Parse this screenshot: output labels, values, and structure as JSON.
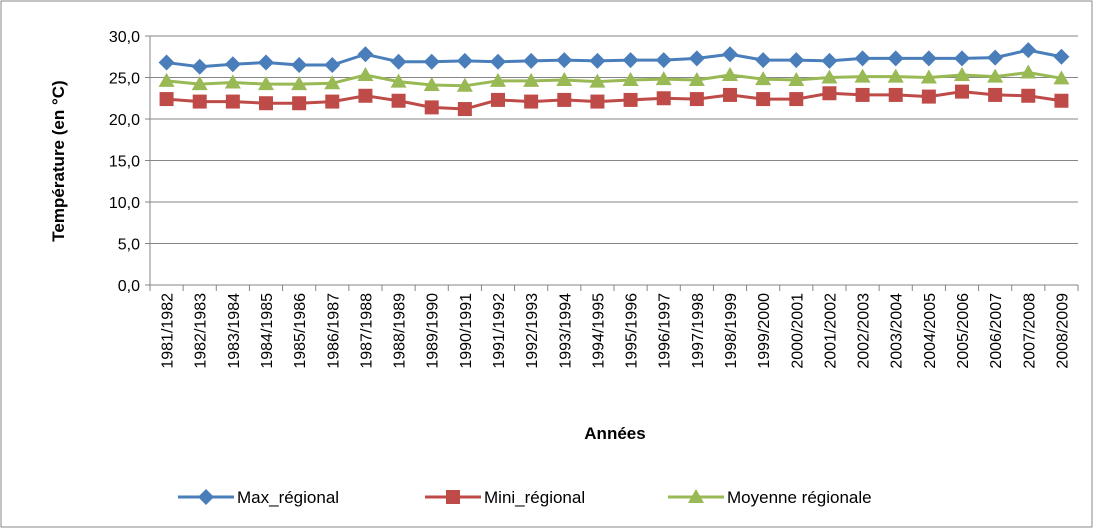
{
  "chart_data": {
    "type": "line",
    "x_label": "Années",
    "y_label": "Température (en °C)",
    "categories": [
      "1981/1982",
      "1982/1983",
      "1983/1984",
      "1984/1985",
      "1985/1986",
      "1986/1987",
      "1987/1988",
      "1988/1989",
      "1989/1990",
      "1990/1991",
      "1991/1992",
      "1992/1993",
      "1993/1994",
      "1994/1995",
      "1995/1996",
      "1996/1997",
      "1997/1998",
      "1998/1999",
      "1999/2000",
      "2000/2001",
      "2001/2002",
      "2002/2003",
      "2003/2004",
      "2004/2005",
      "2005/2006",
      "2006/2007",
      "2007/2008",
      "2008/2009"
    ],
    "series": [
      {
        "name": "Max_régional",
        "color": "#4a7ebb",
        "marker": "diamond",
        "values": [
          26.8,
          26.3,
          26.6,
          26.8,
          26.5,
          26.5,
          27.8,
          26.9,
          26.9,
          27.0,
          26.9,
          27.0,
          27.1,
          27.0,
          27.1,
          27.1,
          27.3,
          27.8,
          27.1,
          27.1,
          27.0,
          27.3,
          27.3,
          27.3,
          27.3,
          27.4,
          28.3,
          27.5
        ]
      },
      {
        "name": "Mini_régional",
        "color": "#be4b48",
        "marker": "square",
        "values": [
          22.4,
          22.1,
          22.1,
          21.9,
          21.9,
          22.1,
          22.8,
          22.2,
          21.4,
          21.2,
          22.3,
          22.1,
          22.3,
          22.1,
          22.3,
          22.5,
          22.4,
          22.9,
          22.4,
          22.4,
          23.1,
          22.9,
          22.9,
          22.7,
          23.3,
          22.9,
          22.8,
          22.2
        ]
      },
      {
        "name": "Moyenne régionale",
        "color": "#98b954",
        "marker": "triangle",
        "values": [
          24.6,
          24.2,
          24.4,
          24.2,
          24.2,
          24.3,
          25.3,
          24.5,
          24.1,
          24.0,
          24.6,
          24.6,
          24.7,
          24.5,
          24.7,
          24.8,
          24.7,
          25.3,
          24.8,
          24.7,
          25.0,
          25.1,
          25.1,
          25.0,
          25.3,
          25.1,
          25.6,
          24.9
        ]
      }
    ],
    "ylim": [
      0,
      30
    ],
    "yticks": [
      {
        "value": 0,
        "label": "0,0"
      },
      {
        "value": 5,
        "label": "5,0"
      },
      {
        "value": 10,
        "label": "10,0"
      },
      {
        "value": 15,
        "label": "15,0"
      },
      {
        "value": 20,
        "label": "20,0"
      },
      {
        "value": 25,
        "label": "25,0"
      },
      {
        "value": 30,
        "label": "30,0"
      }
    ],
    "grid": true,
    "legend": "bottom"
  }
}
